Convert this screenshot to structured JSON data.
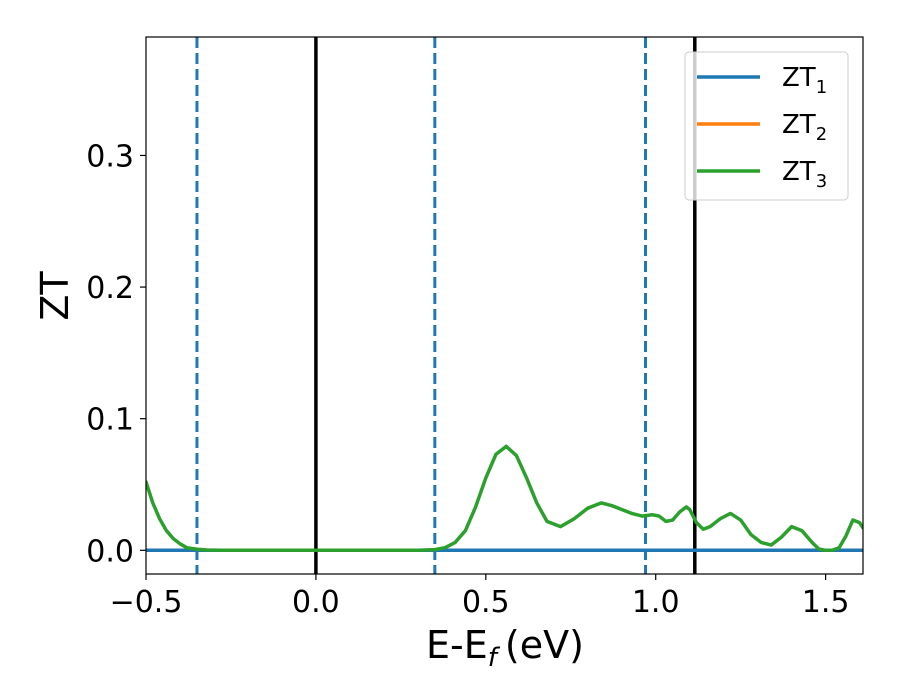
{
  "chart_data": {
    "type": "line",
    "title": "",
    "xlabel": "E-E",
    "xlabel_sub": "f",
    "xlabel_unit": "(eV)",
    "ylabel": "ZT",
    "xlim": [
      -0.5,
      1.61
    ],
    "ylim": [
      -0.018,
      0.39
    ],
    "xticks": [
      -0.5,
      0.0,
      0.5,
      1.0,
      1.5
    ],
    "xtick_labels": [
      "−0.5",
      "0.0",
      "0.5",
      "1.0",
      "1.5"
    ],
    "yticks": [
      0.0,
      0.1,
      0.2,
      0.3
    ],
    "ytick_labels": [
      "0.0",
      "0.1",
      "0.2",
      "0.3"
    ],
    "grid": false,
    "legend": {
      "placement": "top-right",
      "entries": [
        {
          "base": "ZT",
          "sub": "1",
          "color": "#1f77b4"
        },
        {
          "base": "ZT",
          "sub": "2",
          "color": "#ff7f0e"
        },
        {
          "base": "ZT",
          "sub": "3",
          "color": "#2ca02c"
        }
      ]
    },
    "vlines": [
      {
        "x": -0.35,
        "style": "dashed",
        "color": "#1f77b4"
      },
      {
        "x": 0.0,
        "style": "solid",
        "color": "#000000"
      },
      {
        "x": 0.35,
        "style": "dashed",
        "color": "#1f77b4"
      },
      {
        "x": 0.97,
        "style": "dashed",
        "color": "#1f77b4"
      },
      {
        "x": 1.115,
        "style": "solid",
        "color": "#000000"
      }
    ],
    "series": [
      {
        "name": "ZT1",
        "color": "#1f77b4",
        "x": [
          -0.5,
          1.61
        ],
        "y": [
          0.0,
          0.0
        ]
      },
      {
        "name": "ZT2",
        "color": "#ff7f0e",
        "x": [
          -0.5,
          1.61
        ],
        "y": [
          0.0,
          0.0
        ]
      },
      {
        "name": "ZT3",
        "color": "#2ca02c",
        "x": [
          -0.5,
          -0.48,
          -0.46,
          -0.44,
          -0.42,
          -0.4,
          -0.38,
          -0.35,
          -0.32,
          -0.28,
          -0.2,
          0.0,
          0.2,
          0.3,
          0.35,
          0.38,
          0.41,
          0.44,
          0.47,
          0.5,
          0.53,
          0.56,
          0.59,
          0.62,
          0.65,
          0.68,
          0.72,
          0.76,
          0.8,
          0.84,
          0.87,
          0.9,
          0.93,
          0.96,
          0.99,
          1.01,
          1.03,
          1.05,
          1.07,
          1.09,
          1.1,
          1.12,
          1.14,
          1.16,
          1.19,
          1.22,
          1.25,
          1.28,
          1.31,
          1.34,
          1.37,
          1.4,
          1.43,
          1.46,
          1.48,
          1.5,
          1.52,
          1.54,
          1.56,
          1.58,
          1.6,
          1.61
        ],
        "y": [
          0.052,
          0.036,
          0.024,
          0.015,
          0.009,
          0.005,
          0.002,
          0.0008,
          0.0002,
          0.0,
          0.0,
          0.0,
          0.0,
          0.0,
          0.0005,
          0.002,
          0.006,
          0.015,
          0.033,
          0.055,
          0.073,
          0.079,
          0.072,
          0.055,
          0.036,
          0.022,
          0.018,
          0.024,
          0.032,
          0.036,
          0.034,
          0.031,
          0.028,
          0.026,
          0.027,
          0.026,
          0.022,
          0.023,
          0.029,
          0.033,
          0.031,
          0.021,
          0.016,
          0.018,
          0.024,
          0.028,
          0.023,
          0.012,
          0.006,
          0.004,
          0.01,
          0.018,
          0.015,
          0.006,
          0.001,
          0.0,
          0.0,
          0.002,
          0.011,
          0.023,
          0.021,
          0.017
        ]
      }
    ]
  }
}
